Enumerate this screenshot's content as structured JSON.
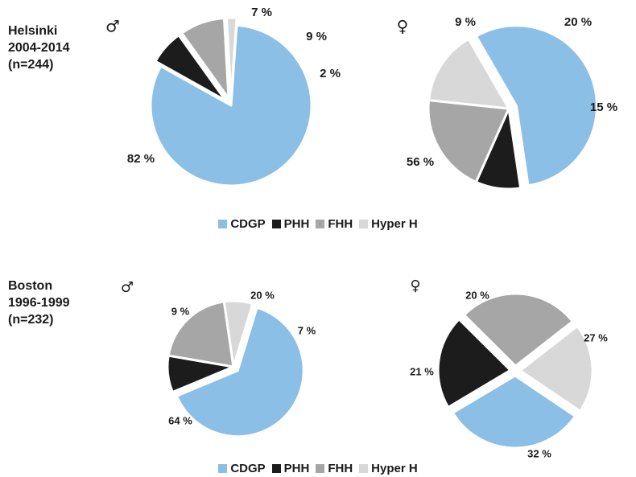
{
  "colors": {
    "CDGP": "#8bbfe6",
    "PHH": "#1c1c1c",
    "FHH": "#a6a6a6",
    "Hyper H": "#d8d8d8"
  },
  "legend": {
    "items": [
      "CDGP",
      "PHH",
      "FHH",
      "Hyper H"
    ]
  },
  "groups": [
    {
      "label": "Helsinki\n2004-2014\n(n=244)"
    },
    {
      "label": "Boston\n1996-1999\n(n=232)"
    }
  ],
  "chart_data": [
    {
      "type": "pie",
      "group": "Helsinki 2004-2014 (n=244)",
      "sex": "male",
      "symbol": "♂",
      "slices": [
        {
          "category": "CDGP",
          "value": 82,
          "label": "82 %"
        },
        {
          "category": "PHH",
          "value": 7,
          "label": "7 %"
        },
        {
          "category": "FHH",
          "value": 9,
          "label": "9 %"
        },
        {
          "category": "Hyper H",
          "value": 2,
          "label": "2 %"
        }
      ]
    },
    {
      "type": "pie",
      "group": "Helsinki 2004-2014 (n=244)",
      "sex": "female",
      "symbol": "♀",
      "slices": [
        {
          "category": "CDGP",
          "value": 56,
          "label": "56 %"
        },
        {
          "category": "PHH",
          "value": 9,
          "label": "9 %"
        },
        {
          "category": "FHH",
          "value": 20,
          "label": "20 %"
        },
        {
          "category": "Hyper H",
          "value": 15,
          "label": "15 %"
        }
      ]
    },
    {
      "type": "pie",
      "group": "Boston 1996-1999 (n=232)",
      "sex": "male",
      "symbol": "♂",
      "slices": [
        {
          "category": "CDGP",
          "value": 64,
          "label": "64 %"
        },
        {
          "category": "PHH",
          "value": 9,
          "label": "9 %"
        },
        {
          "category": "FHH",
          "value": 20,
          "label": "20 %"
        },
        {
          "category": "Hyper H",
          "value": 7,
          "label": "7 %"
        }
      ]
    },
    {
      "type": "pie",
      "group": "Boston 1996-1999 (n=232)",
      "sex": "female",
      "symbol": "♀",
      "slices": [
        {
          "category": "CDGP",
          "value": 32,
          "label": "32 %"
        },
        {
          "category": "PHH",
          "value": 21,
          "label": "21 %"
        },
        {
          "category": "FHH",
          "value": 27,
          "label": "27 %"
        },
        {
          "category": "Hyper H",
          "value": 20,
          "label": "20 %"
        }
      ]
    }
  ]
}
